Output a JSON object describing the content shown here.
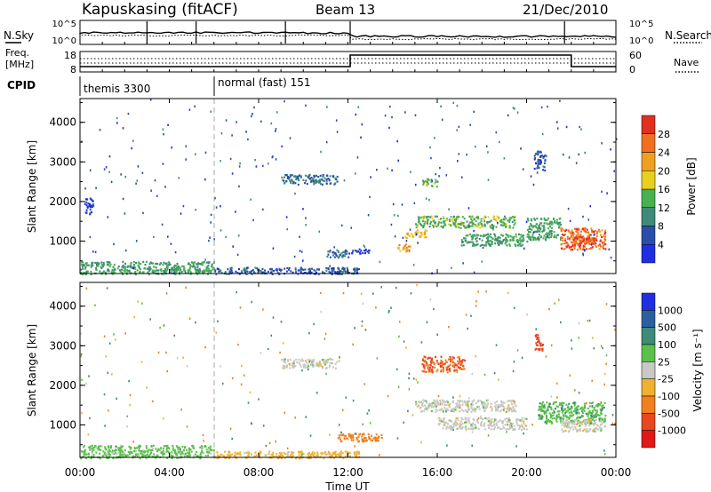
{
  "header": {
    "station": "Kapuskasing (fitACF)",
    "beam": "Beam 13",
    "date": "21/Dec/2010"
  },
  "strip_labels": {
    "nsky": "N.Sky",
    "nsearch": "N.Search",
    "freq_line1": "Freq.",
    "freq_line2": "[MHz]",
    "nave": "Nave",
    "cpid": "CPID",
    "noise_ticks": [
      "10^5",
      "10^0"
    ],
    "freq_ticks": [
      "18",
      "8"
    ],
    "nave_ticks": [
      "60",
      "0"
    ]
  },
  "cpid_segments": [
    {
      "start": 0,
      "label": "themis 3300"
    },
    {
      "start": 6,
      "label": "normal (fast) 151"
    }
  ],
  "x_axis": {
    "label": "Time UT",
    "range": [
      0,
      24
    ],
    "ticks": [
      "00:00",
      "04:00",
      "08:00",
      "12:00",
      "16:00",
      "20:00",
      "00:00"
    ]
  },
  "y_axis": {
    "label": "Slant Range [km]",
    "range": [
      180,
      4600
    ],
    "ticks": [
      "1000",
      "2000",
      "3000",
      "4000"
    ]
  },
  "power_scale": {
    "title": "Power [dB]",
    "labels": [
      "4",
      "8",
      "12",
      "16",
      "20",
      "24",
      "28"
    ],
    "colors": [
      "#1f2fe0",
      "#2a4fa8",
      "#3f8a78",
      "#49b050",
      "#e8d020",
      "#f0a020",
      "#f07020",
      "#e03020"
    ]
  },
  "velocity_scale": {
    "title": "Velocity [m s⁻¹]",
    "labels": [
      "1000",
      "500",
      "100",
      "25",
      "-25",
      "-100",
      "-500",
      "-1000"
    ],
    "colors": [
      "#1f2fe0",
      "#2a5fa0",
      "#3f8a78",
      "#5ac04a",
      "#c8c8c4",
      "#f0b030",
      "#f08020",
      "#e84820",
      "#e01818"
    ]
  },
  "chart_data": [
    {
      "type": "heatmap",
      "title": "Power [dB]",
      "xlabel": "Time UT",
      "ylabel": "Slant Range [km]",
      "xlim": [
        0,
        24
      ],
      "ylim": [
        180,
        4600
      ],
      "regions": [
        {
          "t": [
            0.0,
            6.0
          ],
          "r": [
            180,
            500
          ],
          "value": 12
        },
        {
          "t": [
            0.2,
            0.6
          ],
          "r": [
            1700,
            2100
          ],
          "value": 4
        },
        {
          "t": [
            6.0,
            12.5
          ],
          "r": [
            180,
            350
          ],
          "value": 6
        },
        {
          "t": [
            11.0,
            12.0
          ],
          "r": [
            600,
            800
          ],
          "value": 8
        },
        {
          "t": [
            12.0,
            13.0
          ],
          "r": [
            700,
            820
          ],
          "value": 4
        },
        {
          "t": [
            9.0,
            11.5
          ],
          "r": [
            2450,
            2700
          ],
          "value": 8
        },
        {
          "t": [
            14.2,
            14.8
          ],
          "r": [
            750,
            950
          ],
          "value": 22
        },
        {
          "t": [
            14.5,
            15.5
          ],
          "r": [
            1100,
            1300
          ],
          "value": 20
        },
        {
          "t": [
            15.3,
            16.0
          ],
          "r": [
            2400,
            2600
          ],
          "value": 14
        },
        {
          "t": [
            15.0,
            19.5
          ],
          "r": [
            1350,
            1650
          ],
          "value": 14
        },
        {
          "t": [
            17.0,
            20.0
          ],
          "r": [
            900,
            1200
          ],
          "value": 12
        },
        {
          "t": [
            20.0,
            21.5
          ],
          "r": [
            1050,
            1600
          ],
          "value": 12
        },
        {
          "t": [
            20.3,
            20.8
          ],
          "r": [
            2800,
            3300
          ],
          "value": 6
        },
        {
          "t": [
            21.5,
            23.5
          ],
          "r": [
            800,
            1350
          ],
          "value": 26
        },
        {
          "t": [
            22.0,
            23.0
          ],
          "r": [
            900,
            1150
          ],
          "value": 28
        }
      ]
    },
    {
      "type": "heatmap",
      "title": "Velocity [m s⁻¹]",
      "xlabel": "Time UT",
      "ylabel": "Slant Range [km]",
      "xlim": [
        0,
        24
      ],
      "ylim": [
        180,
        4600
      ],
      "regions": [
        {
          "t": [
            0.0,
            6.0
          ],
          "r": [
            180,
            500
          ],
          "value": 50
        },
        {
          "t": [
            6.0,
            12.5
          ],
          "r": [
            180,
            350
          ],
          "value": -50
        },
        {
          "t": [
            11.5,
            13.5
          ],
          "r": [
            600,
            800
          ],
          "value": -150
        },
        {
          "t": [
            9.0,
            11.5
          ],
          "r": [
            2450,
            2700
          ],
          "value": 0
        },
        {
          "t": [
            15.3,
            17.2
          ],
          "r": [
            2350,
            2750
          ],
          "value": -500
        },
        {
          "t": [
            20.3,
            20.7
          ],
          "r": [
            2900,
            3300
          ],
          "value": -700
        },
        {
          "t": [
            15.0,
            19.5
          ],
          "r": [
            1350,
            1650
          ],
          "value": 0
        },
        {
          "t": [
            16.0,
            20.0
          ],
          "r": [
            900,
            1200
          ],
          "value": 0
        },
        {
          "t": [
            20.5,
            23.5
          ],
          "r": [
            1050,
            1600
          ],
          "value": 80
        },
        {
          "t": [
            21.5,
            23.5
          ],
          "r": [
            850,
            1150
          ],
          "value": 0
        }
      ]
    }
  ]
}
